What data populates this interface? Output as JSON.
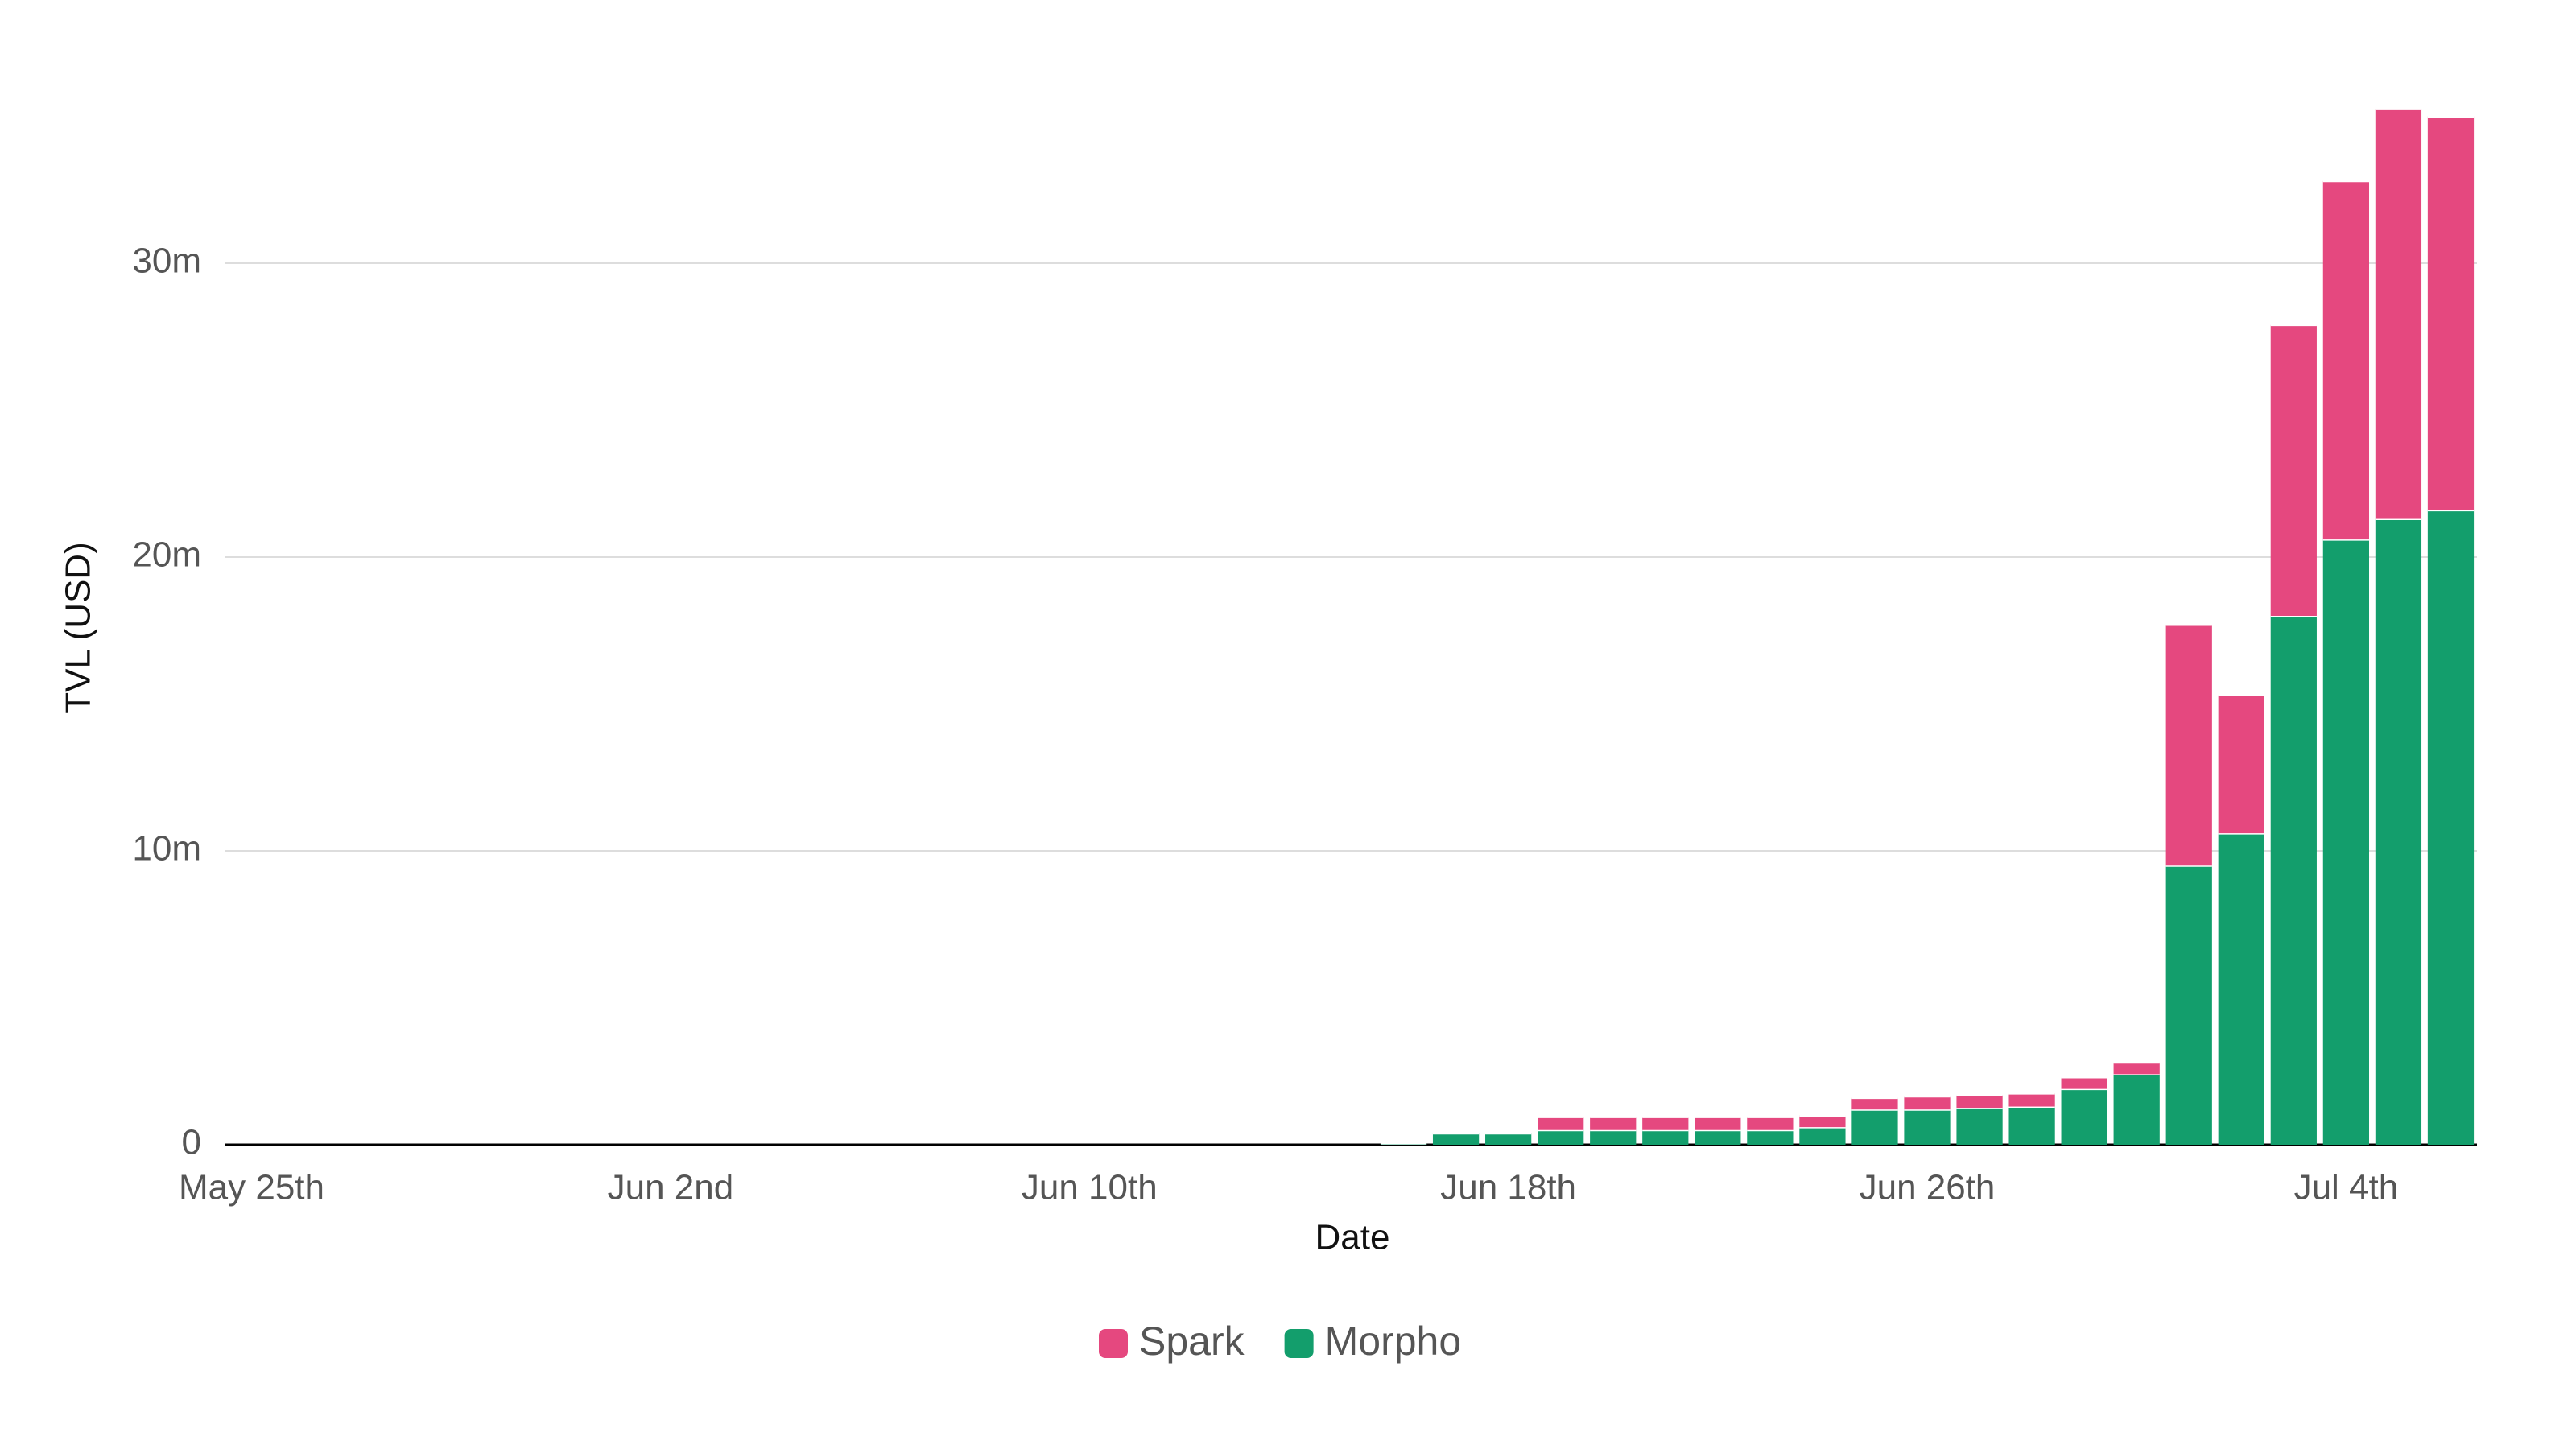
{
  "chart_data": {
    "type": "stacked-bar",
    "x_label": "Date",
    "y_label": "TVL (USD)",
    "categories": [
      "May 25th",
      null,
      null,
      null,
      null,
      null,
      null,
      null,
      "Jun 2nd",
      null,
      null,
      null,
      null,
      null,
      null,
      null,
      "Jun 10th",
      null,
      null,
      null,
      null,
      null,
      null,
      null,
      "Jun 18th",
      null,
      null,
      null,
      null,
      null,
      null,
      null,
      "Jun 26th",
      null,
      null,
      null,
      null,
      null,
      null,
      null,
      "Jul 4th",
      null,
      null
    ],
    "series": [
      {
        "name": "Spark",
        "color": "#e5487f",
        "values": [
          0,
          0,
          0,
          0,
          0,
          0,
          0,
          0,
          0,
          0,
          0,
          0,
          0,
          0,
          0,
          0,
          0,
          0,
          0,
          0,
          0,
          0,
          0,
          0,
          0,
          450000,
          450000,
          450000,
          450000,
          450000,
          400000,
          400000,
          450000,
          450000,
          450000,
          400000,
          400000,
          8200000,
          4700000,
          9900000,
          12200000,
          13950000,
          13400000
        ]
      },
      {
        "name": "Morpho",
        "color": "#139e6c",
        "values": [
          0,
          0,
          0,
          0,
          0,
          0,
          0,
          0,
          0,
          0,
          0,
          0,
          0,
          0,
          0,
          0,
          0,
          0,
          0,
          0,
          0,
          0,
          50000,
          390000,
          390000,
          500000,
          500000,
          500000,
          500000,
          500000,
          600000,
          1200000,
          1200000,
          1250000,
          1300000,
          1900000,
          2400000,
          9500000,
          10600000,
          18000000,
          20600000,
          21300000,
          21600000
        ]
      }
    ],
    "ylim": [
      0,
      36000000
    ],
    "yticks": [
      0,
      {
        "value": 10000000,
        "label": "10m"
      },
      {
        "value": 20000000,
        "label": "20m"
      },
      {
        "value": 30000000,
        "label": "30m"
      }
    ],
    "grid": true,
    "legend": "bottom"
  }
}
